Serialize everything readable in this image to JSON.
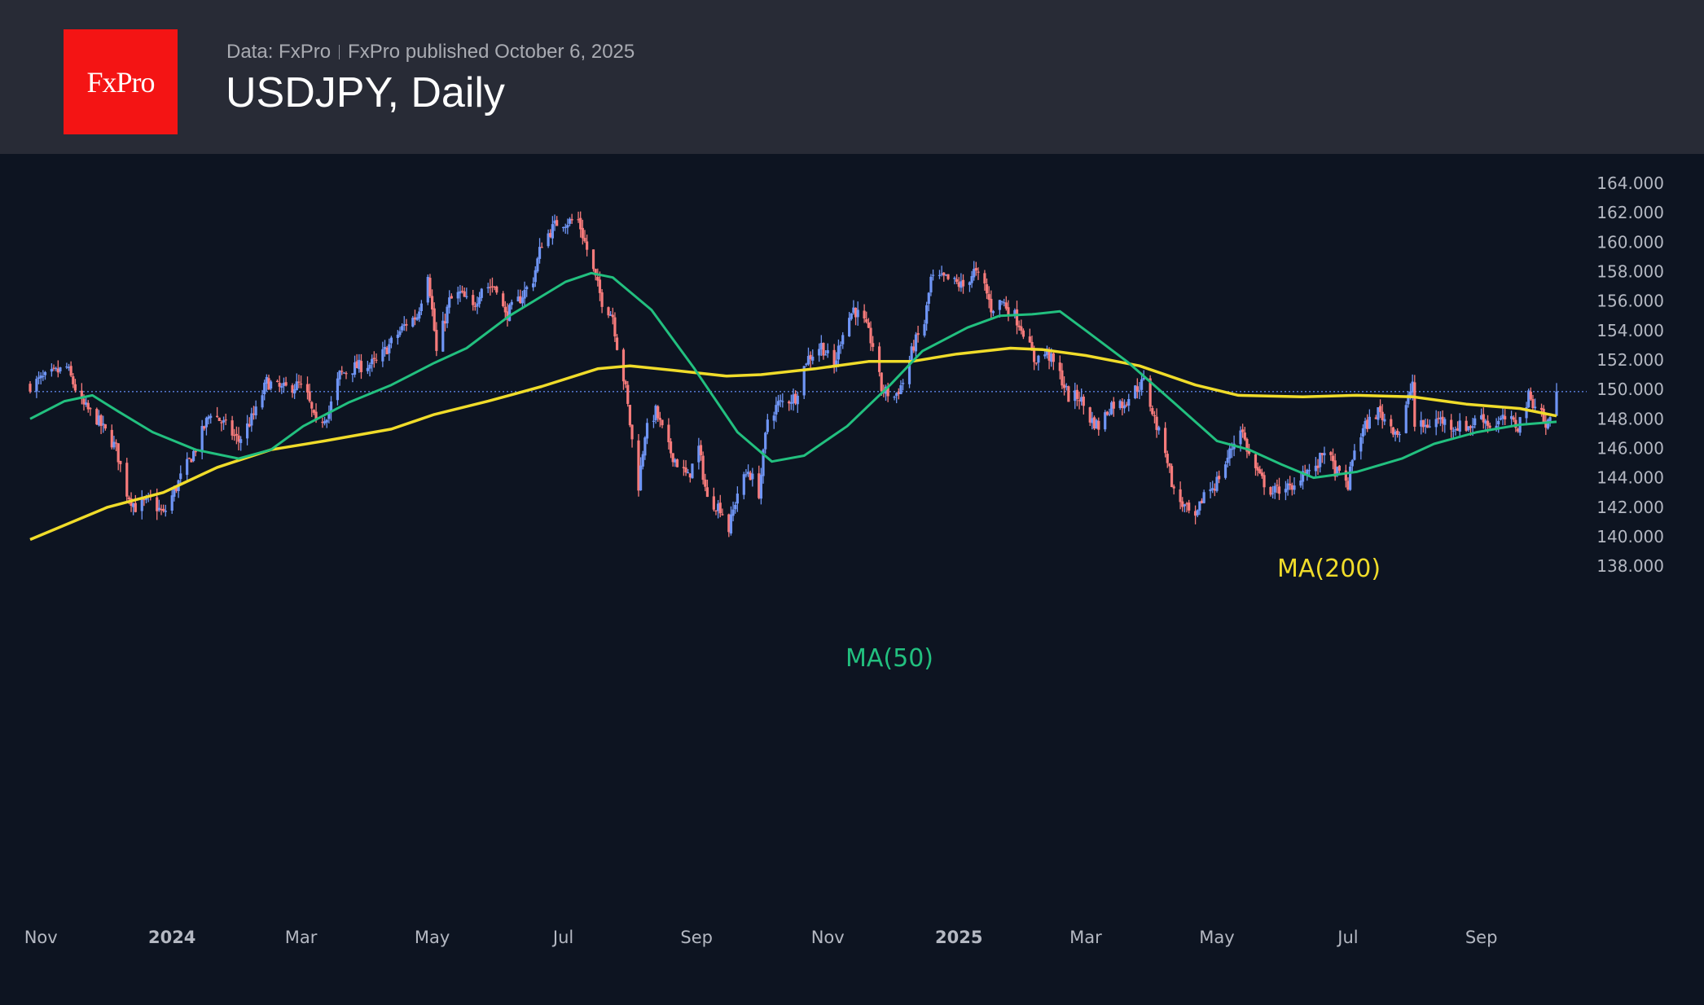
{
  "header": {
    "logo_text": "FxPro",
    "data_source": "Data: FxPro",
    "published": "FxPro published October 6, 2025",
    "title": "USDJPY, Daily"
  },
  "colors": {
    "background": "#0d1421",
    "header_bg": "#282b36",
    "logo_bg": "#f41414",
    "up_candle": "#6f95f5",
    "down_candle": "#f77b7b",
    "ma50": "#22c07f",
    "ma200": "#f0dc2a",
    "last_price_line": "#5b7fe0"
  },
  "chart_data": {
    "type": "candlestick",
    "title": "USDJPY, Daily",
    "x_range": [
      "2023-10-27",
      "2025-10-06"
    ],
    "ylim": [
      137,
      165
    ],
    "grid": false,
    "y_ticks": [
      "138.000",
      "140.000",
      "142.000",
      "144.000",
      "146.000",
      "148.000",
      "150.000",
      "152.000",
      "154.000",
      "156.000",
      "158.000",
      "160.000",
      "162.000",
      "164.000"
    ],
    "x_ticks": [
      {
        "label": "Nov",
        "date": "2023-11-01",
        "year": false
      },
      {
        "label": "2024",
        "date": "2024-01-01",
        "year": true
      },
      {
        "label": "Mar",
        "date": "2024-03-01",
        "year": false
      },
      {
        "label": "May",
        "date": "2024-05-01",
        "year": false
      },
      {
        "label": "Jul",
        "date": "2024-07-01",
        "year": false
      },
      {
        "label": "Sep",
        "date": "2024-09-01",
        "year": false
      },
      {
        "label": "Nov",
        "date": "2024-11-01",
        "year": false
      },
      {
        "label": "2025",
        "date": "2025-01-01",
        "year": true
      },
      {
        "label": "Mar",
        "date": "2025-03-01",
        "year": false
      },
      {
        "label": "May",
        "date": "2025-05-01",
        "year": false
      },
      {
        "label": "Jul",
        "date": "2025-07-01",
        "year": false
      },
      {
        "label": "Sep",
        "date": "2025-09-01",
        "year": false
      }
    ],
    "last_price": 149.85,
    "close_approx": [
      [
        "2023-10-27",
        150.3
      ],
      [
        "2023-11-13",
        151.5
      ],
      [
        "2023-11-20",
        149
      ],
      [
        "2023-11-27",
        148
      ],
      [
        "2023-12-06",
        146
      ],
      [
        "2023-12-11",
        143
      ],
      [
        "2023-12-15",
        142
      ],
      [
        "2023-12-22",
        142.5
      ],
      [
        "2023-12-28",
        141.5
      ],
      [
        "2024-01-05",
        144
      ],
      [
        "2024-01-12",
        146
      ],
      [
        "2024-01-19",
        148.5
      ],
      [
        "2024-01-26",
        147.5
      ],
      [
        "2024-02-01",
        146.5
      ],
      [
        "2024-02-09",
        148.5
      ],
      [
        "2024-02-14",
        150.5
      ],
      [
        "2024-02-21",
        150
      ],
      [
        "2024-02-29",
        150.3
      ],
      [
        "2024-03-04",
        149.5
      ],
      [
        "2024-03-08",
        147.5
      ],
      [
        "2024-03-14",
        148.5
      ],
      [
        "2024-03-19",
        151
      ],
      [
        "2024-03-26",
        151.5
      ],
      [
        "2024-04-05",
        151.8
      ],
      [
        "2024-04-11",
        153
      ],
      [
        "2024-04-19",
        154.5
      ],
      [
        "2024-04-24",
        155
      ],
      [
        "2024-04-29",
        158
      ],
      [
        "2024-05-02",
        154
      ],
      [
        "2024-05-03",
        152.5
      ],
      [
        "2024-05-09",
        156
      ],
      [
        "2024-05-14",
        156.5
      ],
      [
        "2024-05-20",
        155.5
      ],
      [
        "2024-05-24",
        157
      ],
      [
        "2024-05-31",
        157
      ],
      [
        "2024-06-04",
        155
      ],
      [
        "2024-06-10",
        156
      ],
      [
        "2024-06-17",
        157.5
      ],
      [
        "2024-06-21",
        160
      ],
      [
        "2024-06-28",
        161.3
      ],
      [
        "2024-07-08",
        161.5
      ],
      [
        "2024-07-11",
        160
      ],
      [
        "2024-07-15",
        158
      ],
      [
        "2024-07-19",
        156
      ],
      [
        "2024-07-24",
        155
      ],
      [
        "2024-07-26",
        153
      ],
      [
        "2024-07-30",
        150
      ],
      [
        "2024-08-02",
        146.5
      ],
      [
        "2024-08-05",
        143.5
      ],
      [
        "2024-08-08",
        147
      ],
      [
        "2024-08-13",
        148.5
      ],
      [
        "2024-08-19",
        146
      ],
      [
        "2024-08-23",
        145
      ],
      [
        "2024-08-28",
        144
      ],
      [
        "2024-09-02",
        146
      ],
      [
        "2024-09-06",
        142.5
      ],
      [
        "2024-09-12",
        142
      ],
      [
        "2024-09-16",
        140.5
      ],
      [
        "2024-09-20",
        143
      ],
      [
        "2024-09-25",
        144.5
      ],
      [
        "2024-09-30",
        143
      ],
      [
        "2024-10-04",
        148
      ],
      [
        "2024-10-09",
        149
      ],
      [
        "2024-10-17",
        149.5
      ],
      [
        "2024-10-22",
        152
      ],
      [
        "2024-10-29",
        153
      ],
      [
        "2024-11-04",
        151.5
      ],
      [
        "2024-11-08",
        154
      ],
      [
        "2024-11-13",
        155.5
      ],
      [
        "2024-11-18",
        154.5
      ],
      [
        "2024-11-22",
        153
      ],
      [
        "2024-11-26",
        150
      ],
      [
        "2024-12-02",
        149.5
      ],
      [
        "2024-12-06",
        150.5
      ],
      [
        "2024-12-11",
        153
      ],
      [
        "2024-12-16",
        154.5
      ],
      [
        "2024-12-19",
        157.5
      ],
      [
        "2024-12-26",
        157.5
      ],
      [
        "2025-01-03",
        157
      ],
      [
        "2025-01-08",
        158
      ],
      [
        "2025-01-13",
        157
      ],
      [
        "2025-01-16",
        155.5
      ],
      [
        "2025-01-21",
        156
      ],
      [
        "2025-01-27",
        155
      ],
      [
        "2025-01-31",
        154
      ],
      [
        "2025-02-05",
        152
      ],
      [
        "2025-02-11",
        152.5
      ],
      [
        "2025-02-17",
        151
      ],
      [
        "2025-02-21",
        149.5
      ],
      [
        "2025-02-26",
        149.5
      ],
      [
        "2025-03-03",
        148
      ],
      [
        "2025-03-07",
        147.5
      ],
      [
        "2025-03-13",
        149
      ],
      [
        "2025-03-18",
        149
      ],
      [
        "2025-03-24",
        150
      ],
      [
        "2025-03-28",
        150.5
      ],
      [
        "2025-03-31",
        149
      ],
      [
        "2025-04-04",
        147
      ],
      [
        "2025-04-07",
        146
      ],
      [
        "2025-04-11",
        143
      ],
      [
        "2025-04-16",
        142
      ],
      [
        "2025-04-21",
        141
      ],
      [
        "2025-04-25",
        143
      ],
      [
        "2025-04-30",
        143.5
      ],
      [
        "2025-05-05",
        145
      ],
      [
        "2025-05-12",
        147.5
      ],
      [
        "2025-05-16",
        145.5
      ],
      [
        "2025-05-21",
        144
      ],
      [
        "2025-05-27",
        143
      ],
      [
        "2025-06-02",
        143.5
      ],
      [
        "2025-06-05",
        143
      ],
      [
        "2025-06-10",
        144.5
      ],
      [
        "2025-06-16",
        144.5
      ],
      [
        "2025-06-20",
        146
      ],
      [
        "2025-06-25",
        144.5
      ],
      [
        "2025-07-01",
        143.5
      ],
      [
        "2025-07-04",
        146
      ],
      [
        "2025-07-09",
        147.5
      ],
      [
        "2025-07-15",
        148.5
      ],
      [
        "2025-07-21",
        147.5
      ],
      [
        "2025-07-25",
        147
      ],
      [
        "2025-07-31",
        150.5
      ],
      [
        "2025-08-01",
        147.5
      ],
      [
        "2025-08-06",
        147.5
      ],
      [
        "2025-08-12",
        148
      ],
      [
        "2025-08-19",
        147.5
      ],
      [
        "2025-08-27",
        147.5
      ],
      [
        "2025-09-01",
        148.3
      ],
      [
        "2025-09-05",
        147.5
      ],
      [
        "2025-09-12",
        148
      ],
      [
        "2025-09-18",
        147.5
      ],
      [
        "2025-09-23",
        149.5
      ],
      [
        "2025-09-29",
        148.5
      ],
      [
        "2025-10-01",
        147.3
      ],
      [
        "2025-10-06",
        149.8
      ]
    ],
    "series": [
      {
        "name": "MA(200)",
        "color": "#f0dc2a",
        "points": [
          [
            "2023-10-27",
            139.8
          ],
          [
            "2023-12-02",
            142
          ],
          [
            "2023-12-28",
            143
          ],
          [
            "2024-01-22",
            144.7
          ],
          [
            "2024-02-16",
            145.9
          ],
          [
            "2024-03-12",
            146.5
          ],
          [
            "2024-04-12",
            147.3
          ],
          [
            "2024-05-02",
            148.3
          ],
          [
            "2024-05-27",
            149.2
          ],
          [
            "2024-06-21",
            150.2
          ],
          [
            "2024-07-17",
            151.4
          ],
          [
            "2024-08-01",
            151.6
          ],
          [
            "2024-08-21",
            151.3
          ],
          [
            "2024-09-15",
            150.9
          ],
          [
            "2024-10-01",
            151
          ],
          [
            "2024-10-26",
            151.4
          ],
          [
            "2024-11-20",
            151.9
          ],
          [
            "2024-12-10",
            151.9
          ],
          [
            "2024-12-31",
            152.4
          ],
          [
            "2025-01-25",
            152.8
          ],
          [
            "2025-02-09",
            152.7
          ],
          [
            "2025-03-01",
            152.3
          ],
          [
            "2025-03-26",
            151.6
          ],
          [
            "2025-04-21",
            150.3
          ],
          [
            "2025-05-11",
            149.6
          ],
          [
            "2025-06-10",
            149.5
          ],
          [
            "2025-07-05",
            149.6
          ],
          [
            "2025-07-31",
            149.5
          ],
          [
            "2025-08-25",
            149.0
          ],
          [
            "2025-09-19",
            148.7
          ],
          [
            "2025-10-06",
            148.2
          ]
        ]
      },
      {
        "name": "MA(50)",
        "color": "#22c07f",
        "points": [
          [
            "2023-10-27",
            148
          ],
          [
            "2023-11-12",
            149.2
          ],
          [
            "2023-11-25",
            149.6
          ],
          [
            "2023-12-07",
            148.5
          ],
          [
            "2023-12-23",
            147.1
          ],
          [
            "2024-01-12",
            145.9
          ],
          [
            "2024-02-01",
            145.3
          ],
          [
            "2024-02-16",
            145.9
          ],
          [
            "2024-03-02",
            147.5
          ],
          [
            "2024-03-23",
            149.1
          ],
          [
            "2024-04-12",
            150.3
          ],
          [
            "2024-05-02",
            151.8
          ],
          [
            "2024-05-17",
            152.8
          ],
          [
            "2024-06-06",
            155
          ],
          [
            "2024-07-02",
            157.3
          ],
          [
            "2024-07-14",
            157.9
          ],
          [
            "2024-07-24",
            157.6
          ],
          [
            "2024-08-11",
            155.4
          ],
          [
            "2024-08-31",
            151.4
          ],
          [
            "2024-09-20",
            147.1
          ],
          [
            "2024-10-06",
            145.1
          ],
          [
            "2024-10-21",
            145.5
          ],
          [
            "2024-11-10",
            147.5
          ],
          [
            "2024-11-30",
            150.3
          ],
          [
            "2024-12-15",
            152.6
          ],
          [
            "2025-01-05",
            154.2
          ],
          [
            "2025-01-20",
            155
          ],
          [
            "2025-02-04",
            155.1
          ],
          [
            "2025-02-17",
            155.3
          ],
          [
            "2025-03-01",
            154
          ],
          [
            "2025-03-21",
            151.8
          ],
          [
            "2025-04-11",
            149.1
          ],
          [
            "2025-05-01",
            146.5
          ],
          [
            "2025-05-16",
            145.9
          ],
          [
            "2025-05-31",
            144.9
          ],
          [
            "2025-06-15",
            144
          ],
          [
            "2025-07-05",
            144.4
          ],
          [
            "2025-07-26",
            145.3
          ],
          [
            "2025-08-10",
            146.3
          ],
          [
            "2025-08-30",
            147.1
          ],
          [
            "2025-09-19",
            147.6
          ],
          [
            "2025-10-06",
            147.8
          ]
        ]
      }
    ]
  }
}
